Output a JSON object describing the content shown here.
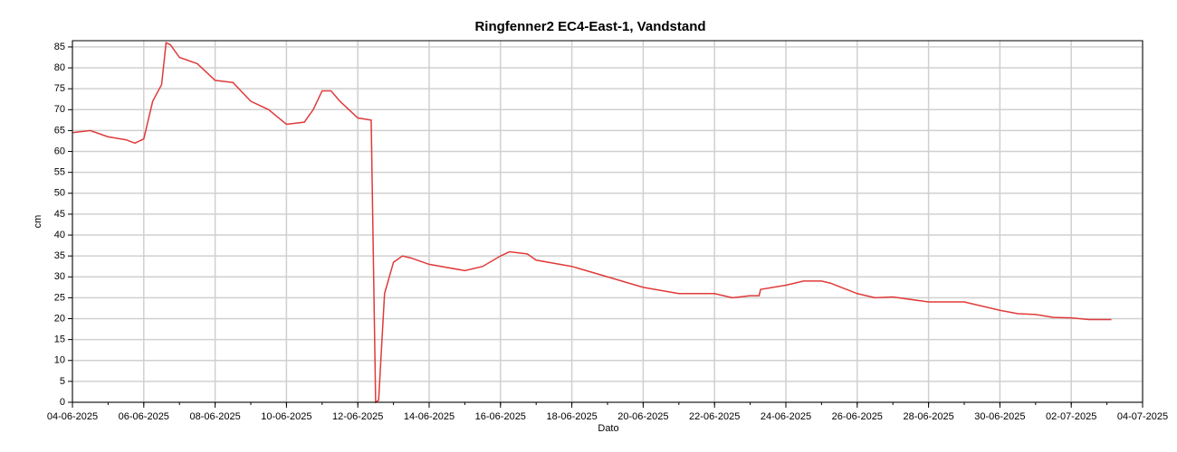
{
  "chart_data": {
    "type": "line",
    "title": "Ringfenner2 EC4-East-1, Vandstand",
    "ylabel": "cm",
    "xlabel": "Dato",
    "x": [
      "2025-06-04T00:00",
      "2025-06-04T12:00",
      "2025-06-05T00:00",
      "2025-06-05T12:00",
      "2025-06-05T18:00",
      "2025-06-06T00:00",
      "2025-06-06T06:00",
      "2025-06-06T12:00",
      "2025-06-06T15:00",
      "2025-06-06T18:00",
      "2025-06-07T00:00",
      "2025-06-07T12:00",
      "2025-06-08T00:00",
      "2025-06-08T12:00",
      "2025-06-09T00:00",
      "2025-06-09T12:00",
      "2025-06-10T00:00",
      "2025-06-10T12:00",
      "2025-06-10T18:00",
      "2025-06-11T00:00",
      "2025-06-11T06:00",
      "2025-06-11T12:00",
      "2025-06-12T00:00",
      "2025-06-12T09:00",
      "2025-06-12T12:00",
      "2025-06-12T14:00",
      "2025-06-12T18:00",
      "2025-06-13T00:00",
      "2025-06-13T06:00",
      "2025-06-13T12:00",
      "2025-06-14T00:00",
      "2025-06-15T00:00",
      "2025-06-15T12:00",
      "2025-06-16T00:00",
      "2025-06-16T06:00",
      "2025-06-16T18:00",
      "2025-06-17T00:00",
      "2025-06-18T00:00",
      "2025-06-19T00:00",
      "2025-06-20T00:00",
      "2025-06-21T00:00",
      "2025-06-22T00:00",
      "2025-06-22T12:00",
      "2025-06-23T00:00",
      "2025-06-23T06:00",
      "2025-06-23T07:00",
      "2025-06-24T00:00",
      "2025-06-24T12:00",
      "2025-06-25T00:00",
      "2025-06-25T06:00",
      "2025-06-26T00:00",
      "2025-06-26T12:00",
      "2025-06-27T00:00",
      "2025-06-28T00:00",
      "2025-06-29T00:00",
      "2025-06-30T00:00",
      "2025-06-30T12:00",
      "2025-07-01T00:00",
      "2025-07-01T12:00",
      "2025-07-02T00:00",
      "2025-07-02T12:00",
      "2025-07-03T00:00",
      "2025-07-03T03:00"
    ],
    "series": [
      {
        "name": "Vandstand",
        "color": "#e03a3a",
        "values": [
          64.5,
          65,
          63.5,
          62.8,
          62,
          63,
          72,
          76,
          86,
          85.5,
          82.5,
          81,
          77,
          76.5,
          72,
          70,
          66.5,
          67,
          70,
          74.5,
          74.5,
          72,
          68,
          67.5,
          0,
          0.5,
          26,
          33.5,
          35,
          34.5,
          33,
          31.5,
          32.5,
          35,
          36,
          35.5,
          34,
          32.5,
          30,
          27.5,
          26,
          26,
          25,
          25.5,
          25.5,
          27,
          28,
          29,
          29,
          28.5,
          26,
          25,
          25.2,
          24,
          24,
          22,
          21.2,
          21,
          20.3,
          20.2,
          19.8,
          19.8,
          19.8
        ]
      }
    ],
    "xlim": [
      "2025-06-04T00:00",
      "2025-07-04T00:00"
    ],
    "xticks": [
      {
        "value": "2025-06-04T00:00",
        "label": "04-06-2025"
      },
      {
        "value": "2025-06-06T00:00",
        "label": "06-06-2025"
      },
      {
        "value": "2025-06-08T00:00",
        "label": "08-06-2025"
      },
      {
        "value": "2025-06-10T00:00",
        "label": "10-06-2025"
      },
      {
        "value": "2025-06-12T00:00",
        "label": "12-06-2025"
      },
      {
        "value": "2025-06-14T00:00",
        "label": "14-06-2025"
      },
      {
        "value": "2025-06-16T00:00",
        "label": "16-06-2025"
      },
      {
        "value": "2025-06-18T00:00",
        "label": "18-06-2025"
      },
      {
        "value": "2025-06-20T00:00",
        "label": "20-06-2025"
      },
      {
        "value": "2025-06-22T00:00",
        "label": "22-06-2025"
      },
      {
        "value": "2025-06-24T00:00",
        "label": "24-06-2025"
      },
      {
        "value": "2025-06-26T00:00",
        "label": "26-06-2025"
      },
      {
        "value": "2025-06-28T00:00",
        "label": "28-06-2025"
      },
      {
        "value": "2025-06-30T00:00",
        "label": "30-06-2025"
      },
      {
        "value": "2025-07-02T00:00",
        "label": "02-07-2025"
      },
      {
        "value": "2025-07-04T00:00",
        "label": "04-07-2025"
      }
    ],
    "ylim": [
      0,
      86.5
    ],
    "yticks": [
      0,
      5,
      10,
      15,
      20,
      25,
      30,
      35,
      40,
      45,
      50,
      55,
      60,
      65,
      70,
      75,
      80,
      85
    ],
    "grid": true
  }
}
